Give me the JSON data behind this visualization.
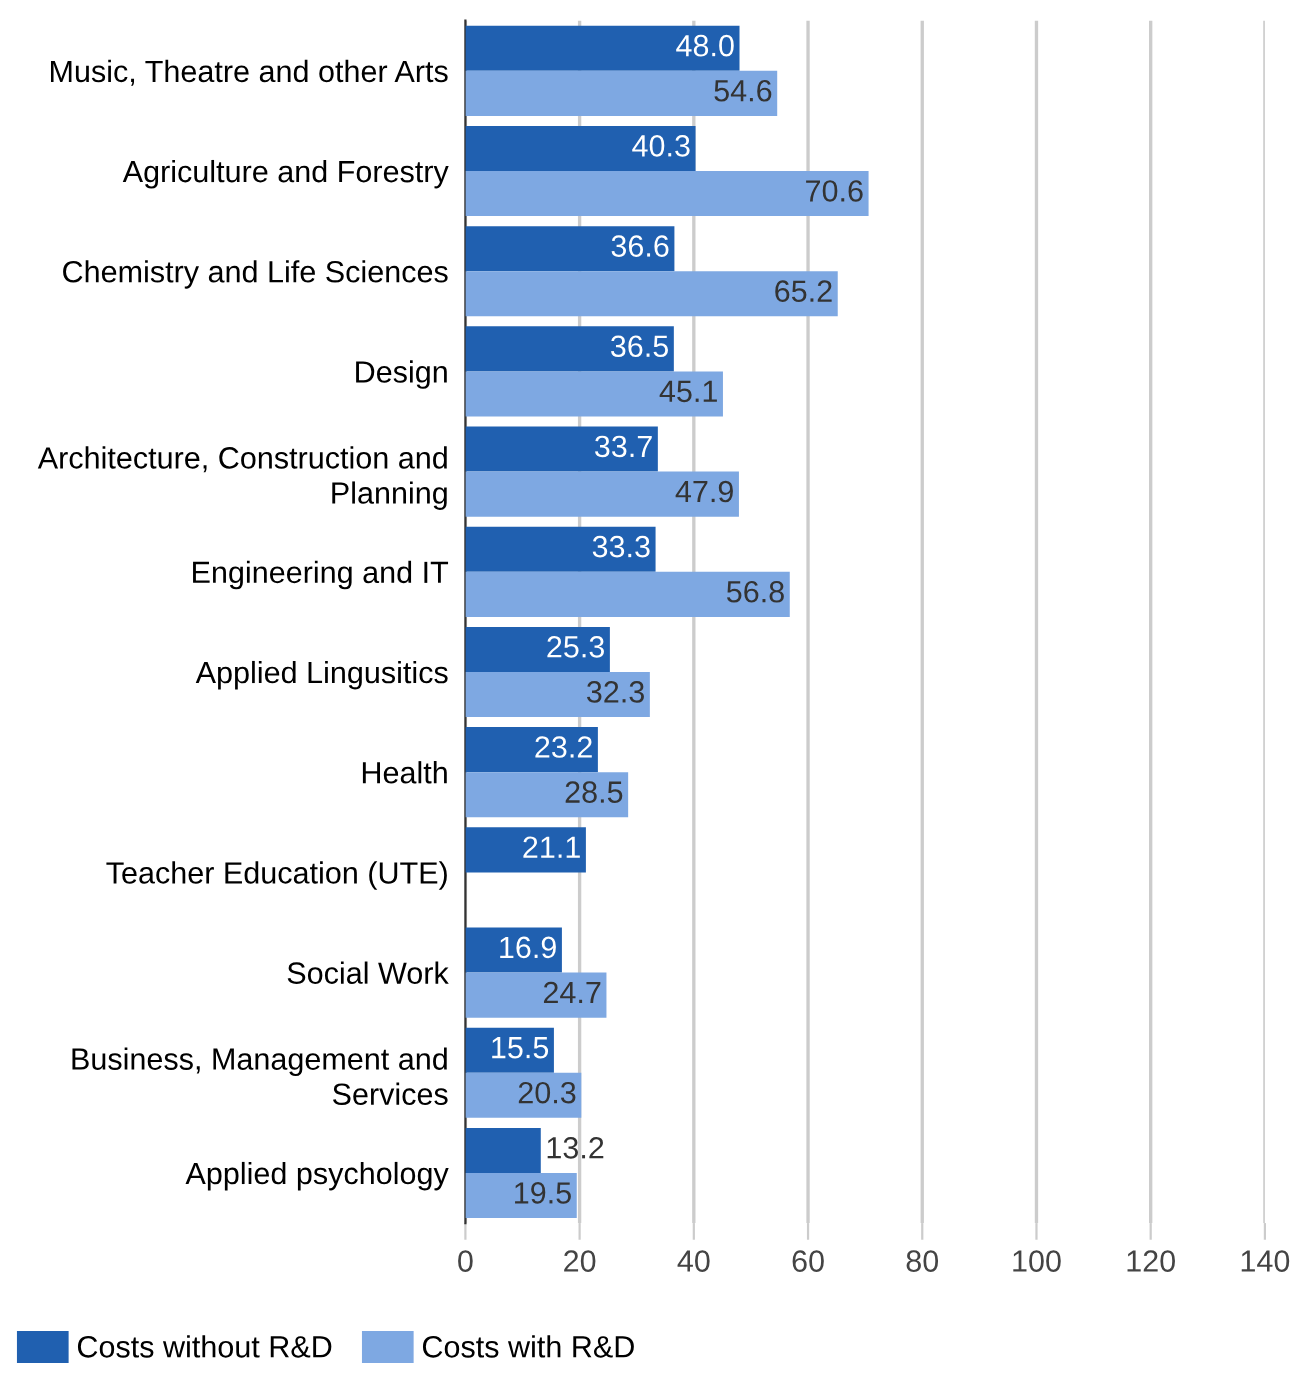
{
  "chart_data": {
    "type": "bar",
    "orientation": "horizontal",
    "categories": [
      "Music, Theatre and other Arts",
      "Agriculture and Forestry",
      "Chemistry and Life Sciences",
      "Design",
      "Architecture, Construction and\nPlanning",
      "Engineering and IT",
      "Applied Lingusitics",
      "Health",
      "Teacher Education (UTE)",
      "Social Work",
      "Business, Management and\nServices",
      "Applied psychology"
    ],
    "series": [
      {
        "name": "Costs without R&D",
        "color": "#2060b0",
        "values": [
          48.0,
          40.3,
          36.6,
          36.5,
          33.7,
          33.3,
          25.3,
          23.2,
          21.1,
          16.9,
          15.5,
          13.2
        ],
        "value_labels": [
          "48.0",
          "40.3",
          "36.6",
          "36.5",
          "33.7",
          "33.3",
          "25.3",
          "23.2",
          "21.1",
          "16.9",
          "15.5",
          "13.2"
        ]
      },
      {
        "name": "Costs with R&D",
        "color": "#7ea8e2",
        "values": [
          54.6,
          70.6,
          65.2,
          45.1,
          47.9,
          56.8,
          32.3,
          28.5,
          null,
          24.7,
          20.3,
          19.5
        ],
        "value_labels": [
          "54.6",
          "70.6",
          "65.2",
          "45.1",
          "47.9",
          "56.8",
          "32.3",
          "28.5",
          null,
          "24.7",
          "20.3",
          "19.5"
        ]
      }
    ],
    "xlim": [
      0,
      140
    ],
    "xticks": [
      0,
      20,
      40,
      60,
      80,
      100,
      120,
      140
    ],
    "grid": "x",
    "legend": "bottom left"
  }
}
